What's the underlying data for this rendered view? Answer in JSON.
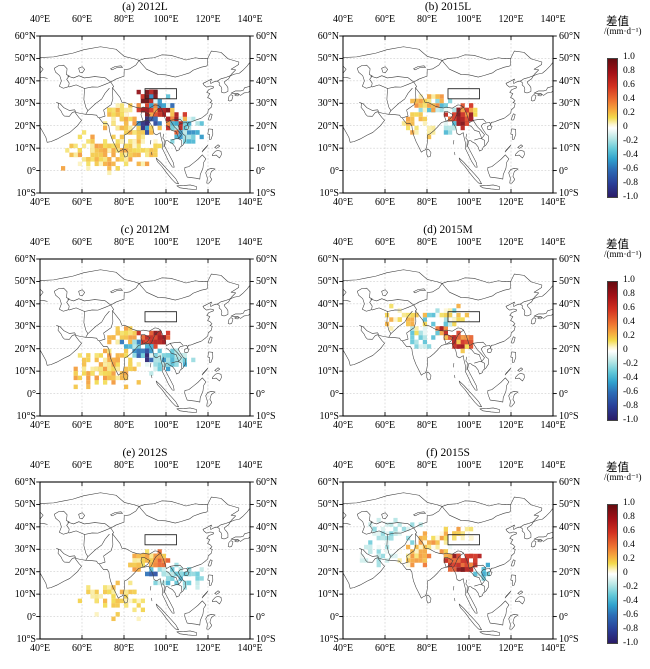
{
  "figure": {
    "background": "#ffffff",
    "frame_color": "#000000",
    "coast_color": "#3d3d3d",
    "grid_color": "#b5b5b5",
    "box_color": "#222222"
  },
  "colorbar": {
    "title": "差值",
    "unit": "/(mm·d⁻¹)",
    "tick_labels": [
      "1.0",
      "0.8",
      "0.6",
      "0.4",
      "0.2",
      "0",
      "-0.2",
      "-0.4",
      "-0.6",
      "-0.8",
      "-1.0"
    ],
    "stops": [
      {
        "v": 1.0,
        "c": "#650b10"
      },
      {
        "v": 0.8,
        "c": "#a31016"
      },
      {
        "v": 0.6,
        "c": "#d33120"
      },
      {
        "v": 0.4,
        "c": "#ee7231"
      },
      {
        "v": 0.25,
        "c": "#f6ad3f"
      },
      {
        "v": 0.15,
        "c": "#f3db4d"
      },
      {
        "v": 0.05,
        "c": "#fdf6cf"
      },
      {
        "v": 0.0,
        "c": "#ffffff"
      },
      {
        "v": -0.05,
        "c": "#eaf7f5"
      },
      {
        "v": -0.15,
        "c": "#b9e7e6"
      },
      {
        "v": -0.3,
        "c": "#66cad9"
      },
      {
        "v": -0.45,
        "c": "#30a2cd"
      },
      {
        "v": -0.6,
        "c": "#2c6db6"
      },
      {
        "v": -0.8,
        "c": "#293f98"
      },
      {
        "v": -1.0,
        "c": "#2a1b68"
      }
    ]
  },
  "axes": {
    "lon_tick_labels": [
      "40°E",
      "60°E",
      "80°E",
      "100°E",
      "120°E",
      "140°E"
    ],
    "lon_tick_values": [
      40,
      60,
      80,
      100,
      120,
      140
    ],
    "lat_tick_labels": [
      "60°N",
      "50°N",
      "40°N",
      "30°N",
      "20°N",
      "10°N",
      "0°",
      "10°S"
    ],
    "lat_tick_values": [
      60,
      50,
      40,
      30,
      20,
      10,
      0,
      -10
    ],
    "lon_range": [
      40,
      140
    ],
    "lat_range": [
      -10,
      60
    ],
    "grid": "dashed"
  },
  "chart_data": {
    "type": "heatmap",
    "title": "",
    "variable": "差值 (difference)",
    "units": "mm·d⁻¹",
    "value_range": [
      -1.0,
      1.0
    ],
    "map_extent": {
      "lon": [
        40,
        140
      ],
      "lat": [
        -10,
        60
      ]
    },
    "highlight_box": {
      "lon": [
        90,
        105
      ],
      "lat": [
        32,
        36.5
      ]
    },
    "cluster_schema": [
      "lon_center",
      "lat_center",
      "lon_spread",
      "lat_spread",
      "value_mean",
      "value_spread",
      "n_cells"
    ],
    "panels": [
      {
        "id": "a",
        "title": "(a) 2012L",
        "year": 2012,
        "case": "L",
        "clusters": [
          [
            92,
            33,
            2.5,
            1.5,
            0.85,
            0.25,
            26
          ],
          [
            95,
            26.5,
            6,
            2,
            0.55,
            0.45,
            55
          ],
          [
            91,
            20,
            3.5,
            2.2,
            -0.75,
            0.3,
            40
          ],
          [
            104,
            22,
            4,
            2.5,
            0.5,
            0.35,
            35
          ],
          [
            110,
            17,
            5,
            3.5,
            -0.3,
            0.25,
            45
          ],
          [
            97,
            30,
            5,
            1.8,
            -0.35,
            0.3,
            22
          ],
          [
            80,
            24,
            6,
            4,
            0.2,
            0.15,
            55
          ],
          [
            72,
            9,
            12,
            6,
            0.18,
            0.12,
            120
          ],
          [
            88,
            13,
            6,
            4,
            0.15,
            0.1,
            40
          ]
        ]
      },
      {
        "id": "b",
        "title": "(b) 2015L",
        "year": 2015,
        "case": "L",
        "clusters": [
          [
            96,
            23.5,
            4.5,
            2.2,
            0.7,
            0.3,
            50
          ],
          [
            84,
            28.5,
            5,
            2.5,
            -0.2,
            0.18,
            30
          ],
          [
            81,
            31,
            5,
            2.5,
            0.2,
            0.15,
            25
          ],
          [
            76,
            22,
            5,
            4,
            0.18,
            0.12,
            22
          ],
          [
            92,
            19,
            3,
            1.5,
            -0.25,
            0.2,
            12
          ],
          [
            100,
            27,
            3,
            2,
            0.35,
            0.3,
            14
          ]
        ]
      },
      {
        "id": "c",
        "title": "(c) 2012M",
        "year": 2012,
        "case": "M",
        "clusters": [
          [
            95,
            24.5,
            4.5,
            1.8,
            0.65,
            0.3,
            48
          ],
          [
            90,
            18.5,
            3.5,
            1.8,
            -0.7,
            0.3,
            38
          ],
          [
            103,
            16,
            5.5,
            3,
            -0.3,
            0.2,
            48
          ],
          [
            71,
            11,
            10,
            5,
            0.2,
            0.12,
            100
          ],
          [
            80,
            25,
            5,
            3,
            0.18,
            0.12,
            35
          ],
          [
            85,
            21,
            3,
            2,
            -0.35,
            0.25,
            18
          ],
          [
            96,
            13,
            4,
            3,
            -0.2,
            0.15,
            20
          ]
        ]
      },
      {
        "id": "d",
        "title": "(d) 2015M",
        "year": 2015,
        "case": "M",
        "clusters": [
          [
            95,
            23.5,
            3.5,
            2.2,
            0.65,
            0.3,
            40
          ],
          [
            88,
            27.5,
            2.2,
            1.3,
            0.5,
            0.3,
            10
          ],
          [
            77,
            25,
            4,
            3,
            -0.2,
            0.15,
            22
          ],
          [
            88,
            33.5,
            5,
            2.5,
            -0.18,
            0.2,
            28
          ],
          [
            70,
            33,
            6,
            4,
            0.15,
            0.12,
            22
          ],
          [
            99,
            22,
            2.5,
            2,
            0.45,
            0.3,
            14
          ],
          [
            93,
            35,
            4,
            2,
            0.15,
            0.15,
            14
          ]
        ]
      },
      {
        "id": "e",
        "title": "(e) 2012S",
        "year": 2012,
        "case": "S",
        "clusters": [
          [
            95,
            25.5,
            4.5,
            2,
            0.3,
            0.2,
            45
          ],
          [
            93,
            19.5,
            1.6,
            1,
            -0.6,
            0.3,
            7
          ],
          [
            103,
            18,
            5.5,
            2.8,
            -0.25,
            0.15,
            40
          ],
          [
            112,
            17,
            4,
            3,
            -0.2,
            0.12,
            20
          ],
          [
            76,
            8,
            10,
            5,
            0.15,
            0.1,
            55
          ],
          [
            86,
            24,
            4,
            2.5,
            0.2,
            0.12,
            22
          ]
        ]
      },
      {
        "id": "f",
        "title": "(f) 2015S",
        "year": 2015,
        "case": "S",
        "clusters": [
          [
            98,
            24,
            4.5,
            2.2,
            0.7,
            0.35,
            55
          ],
          [
            90,
            26.5,
            3,
            1.8,
            0.4,
            0.3,
            18
          ],
          [
            85,
            32.5,
            6,
            3,
            0.15,
            0.22,
            40
          ],
          [
            64,
            37,
            8,
            4,
            -0.2,
            0.15,
            35
          ],
          [
            75,
            27,
            5,
            3,
            0.2,
            0.2,
            28
          ],
          [
            106,
            20,
            3,
            2,
            -0.25,
            0.2,
            14
          ],
          [
            95,
            37,
            5,
            2.2,
            0.18,
            0.15,
            18
          ],
          [
            55,
            30,
            6,
            4,
            -0.15,
            0.12,
            20
          ]
        ]
      }
    ]
  }
}
